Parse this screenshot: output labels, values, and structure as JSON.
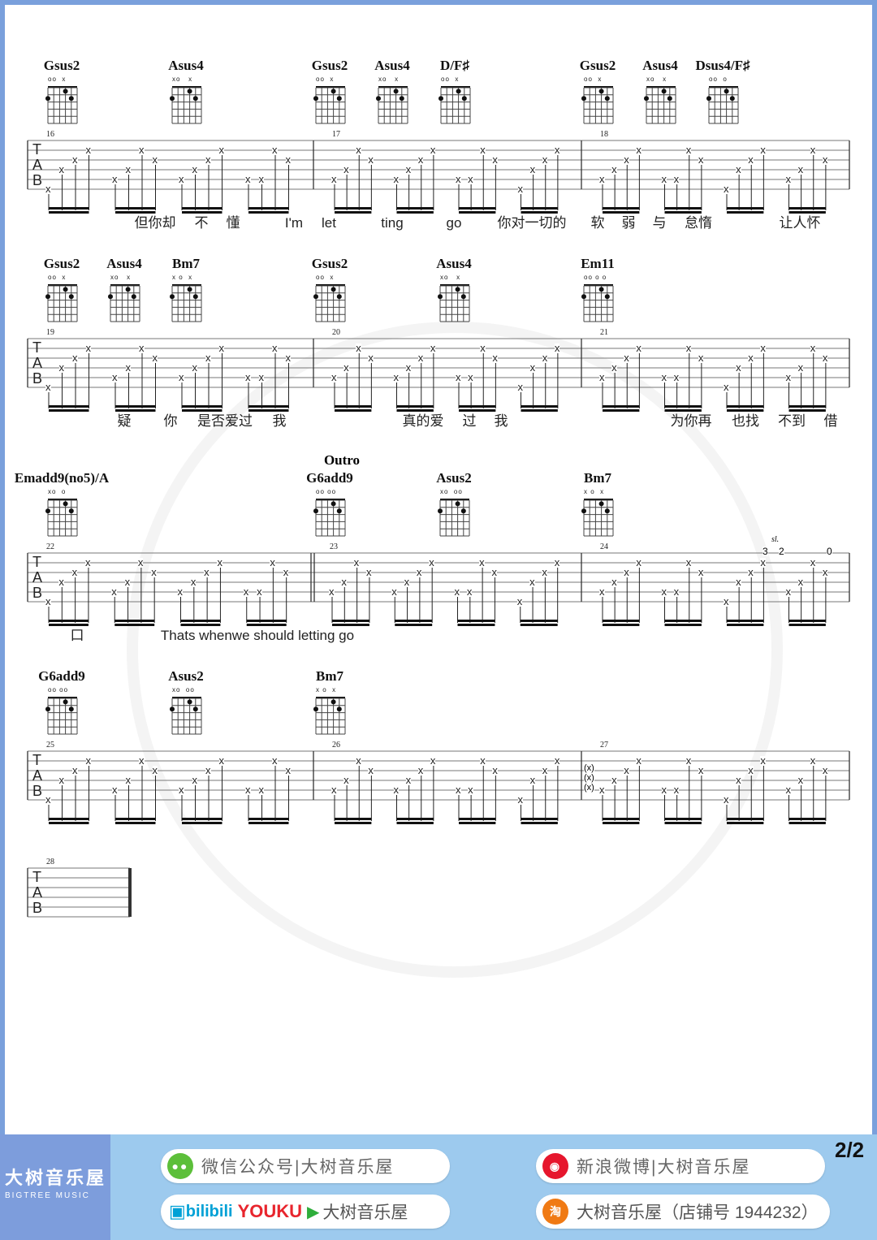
{
  "page_indicator": "2/2",
  "watermark": {
    "title": "大树音乐屋",
    "subtitle": "BIGTREEMUSIC"
  },
  "tab_clef": [
    "T",
    "A",
    "B"
  ],
  "note_glyph": "x",
  "systems": [
    {
      "measures": [
        "16",
        "17",
        "18"
      ],
      "chords": [
        {
          "name": "Gsus2",
          "marks": "oo  x"
        },
        {
          "name": "Asus4",
          "marks": "xo   x"
        },
        {
          "name": "Gsus2",
          "marks": "oo  x"
        },
        {
          "name": "Asus4",
          "marks": "xo   x"
        },
        {
          "name": "D/F♯",
          "marks": "oo  x"
        },
        {
          "name": "Gsus2",
          "marks": "oo  x"
        },
        {
          "name": "Asus4",
          "marks": "xo   x"
        },
        {
          "name": "Dsus4/F♯",
          "marks": "oo  o"
        }
      ],
      "lyrics": [
        "但你却",
        "不",
        "懂",
        "I'm",
        "let",
        "ting",
        "go",
        "你对一切的",
        "软",
        "弱",
        "与",
        "怠惰",
        "让人怀"
      ]
    },
    {
      "measures": [
        "19",
        "20",
        "21"
      ],
      "chords": [
        {
          "name": "Gsus2",
          "marks": "oo  x"
        },
        {
          "name": "Asus4",
          "marks": "xo   x"
        },
        {
          "name": "Bm7",
          "marks": "x o  x"
        },
        {
          "name": "Gsus2",
          "marks": "oo  x"
        },
        {
          "name": "Asus4",
          "marks": "xo   x"
        },
        {
          "name": "Em11",
          "marks": "oo o o"
        }
      ],
      "lyrics": [
        "疑",
        "你",
        "是否爱过",
        "我",
        "真的爱",
        "过",
        "我",
        "为你再",
        "也找",
        "不到",
        "借"
      ]
    },
    {
      "section": "Outro",
      "measures": [
        "22",
        "23",
        "24"
      ],
      "chords": [
        {
          "name": "Emadd9(no5)/A",
          "marks": "xo  o"
        },
        {
          "name": "G6add9",
          "marks": "oo oo"
        },
        {
          "name": "Asus2",
          "marks": "xo  oo"
        },
        {
          "name": "Bm7",
          "marks": "x o  x"
        }
      ],
      "lyrics": [
        "口",
        "Thats whenwe should letting go"
      ],
      "annotations": {
        "slide": "sl.",
        "fret_a": "3",
        "fret_b": "2",
        "fret_c": "0"
      }
    },
    {
      "measures": [
        "25",
        "26",
        "27"
      ],
      "chords": [
        {
          "name": "G6add9",
          "marks": "oo oo"
        },
        {
          "name": "Asus2",
          "marks": "xo  oo"
        },
        {
          "name": "Bm7",
          "marks": "x o  x"
        }
      ],
      "lyrics": [],
      "annotations": {
        "muted": "(x)"
      }
    },
    {
      "measures": [
        "28"
      ],
      "chords": [],
      "lyrics": []
    }
  ],
  "footer": {
    "brand_cn": "大树音乐屋",
    "brand_en": "BIGTREE MUSIC",
    "wechat": "微信公众号|大树音乐屋",
    "weibo": "新浪微博|大树音乐屋",
    "video": {
      "bilibili": "bilibili",
      "youku": "YOUKU",
      "name": "大树音乐屋"
    },
    "taobao": "大树音乐屋（店铺号 1944232）",
    "colors": {
      "band": "#9dcaee",
      "brand_block": "#7d9ddc",
      "wechat": "#5cbf3a",
      "weibo": "#e6162d",
      "bilibili": "#00a1d6",
      "youku": "#e8252d",
      "taobao": "#f07a14"
    }
  }
}
